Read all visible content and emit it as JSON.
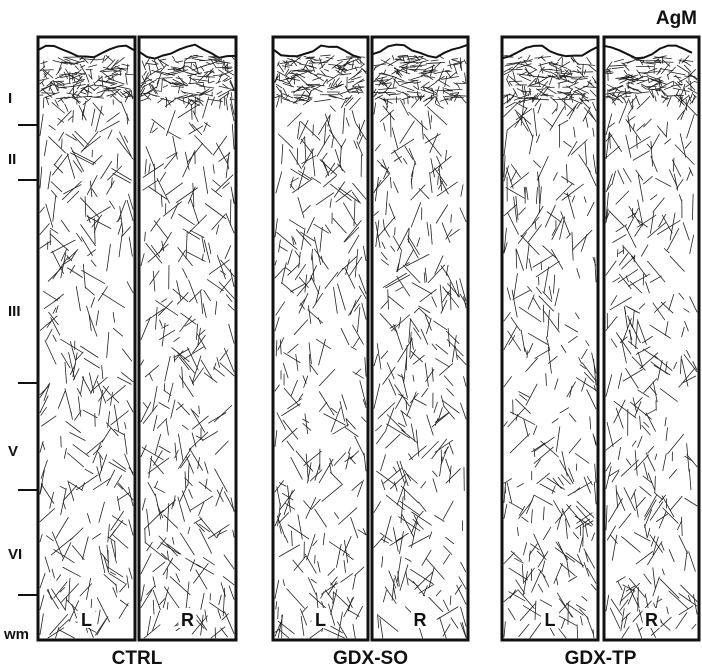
{
  "figure_label": "AgM",
  "layers": [
    "I",
    "II",
    "III",
    "V",
    "VI",
    "wm"
  ],
  "groups": [
    {
      "label": "CTRL",
      "panels": [
        "L",
        "R"
      ]
    },
    {
      "label": "GDX-SO",
      "panels": [
        "L",
        "R"
      ]
    },
    {
      "label": "GDX-TP",
      "panels": [
        "L",
        "R"
      ]
    }
  ]
}
